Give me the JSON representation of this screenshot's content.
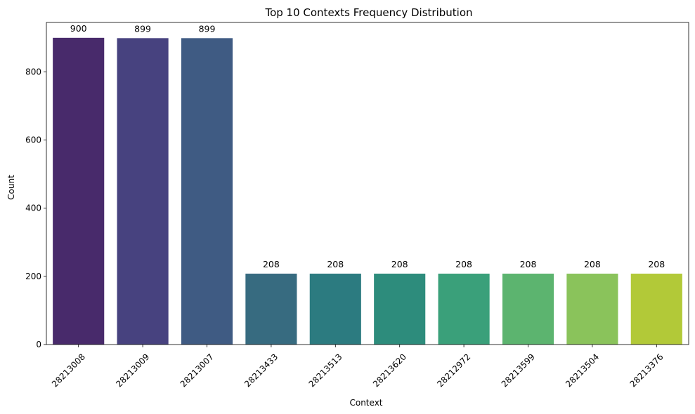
{
  "chart_data": {
    "type": "bar",
    "title": "Top 10 Contexts Frequency Distribution",
    "xlabel": "Context",
    "ylabel": "Count",
    "categories": [
      "28213008",
      "28213009",
      "28213007",
      "28213433",
      "28213513",
      "28213620",
      "28212972",
      "28213599",
      "28213504",
      "28213376"
    ],
    "values": [
      900,
      899,
      899,
      208,
      208,
      208,
      208,
      208,
      208,
      208
    ],
    "ylim": [
      0,
      945
    ],
    "yticks": [
      0,
      200,
      400,
      600,
      800
    ],
    "grid": false,
    "colors": [
      "#482a6b",
      "#47427f",
      "#3f5b83",
      "#376b80",
      "#2c7b80",
      "#2d8c7c",
      "#3aa07a",
      "#5cb46f",
      "#8ac35b",
      "#b2c938"
    ]
  }
}
